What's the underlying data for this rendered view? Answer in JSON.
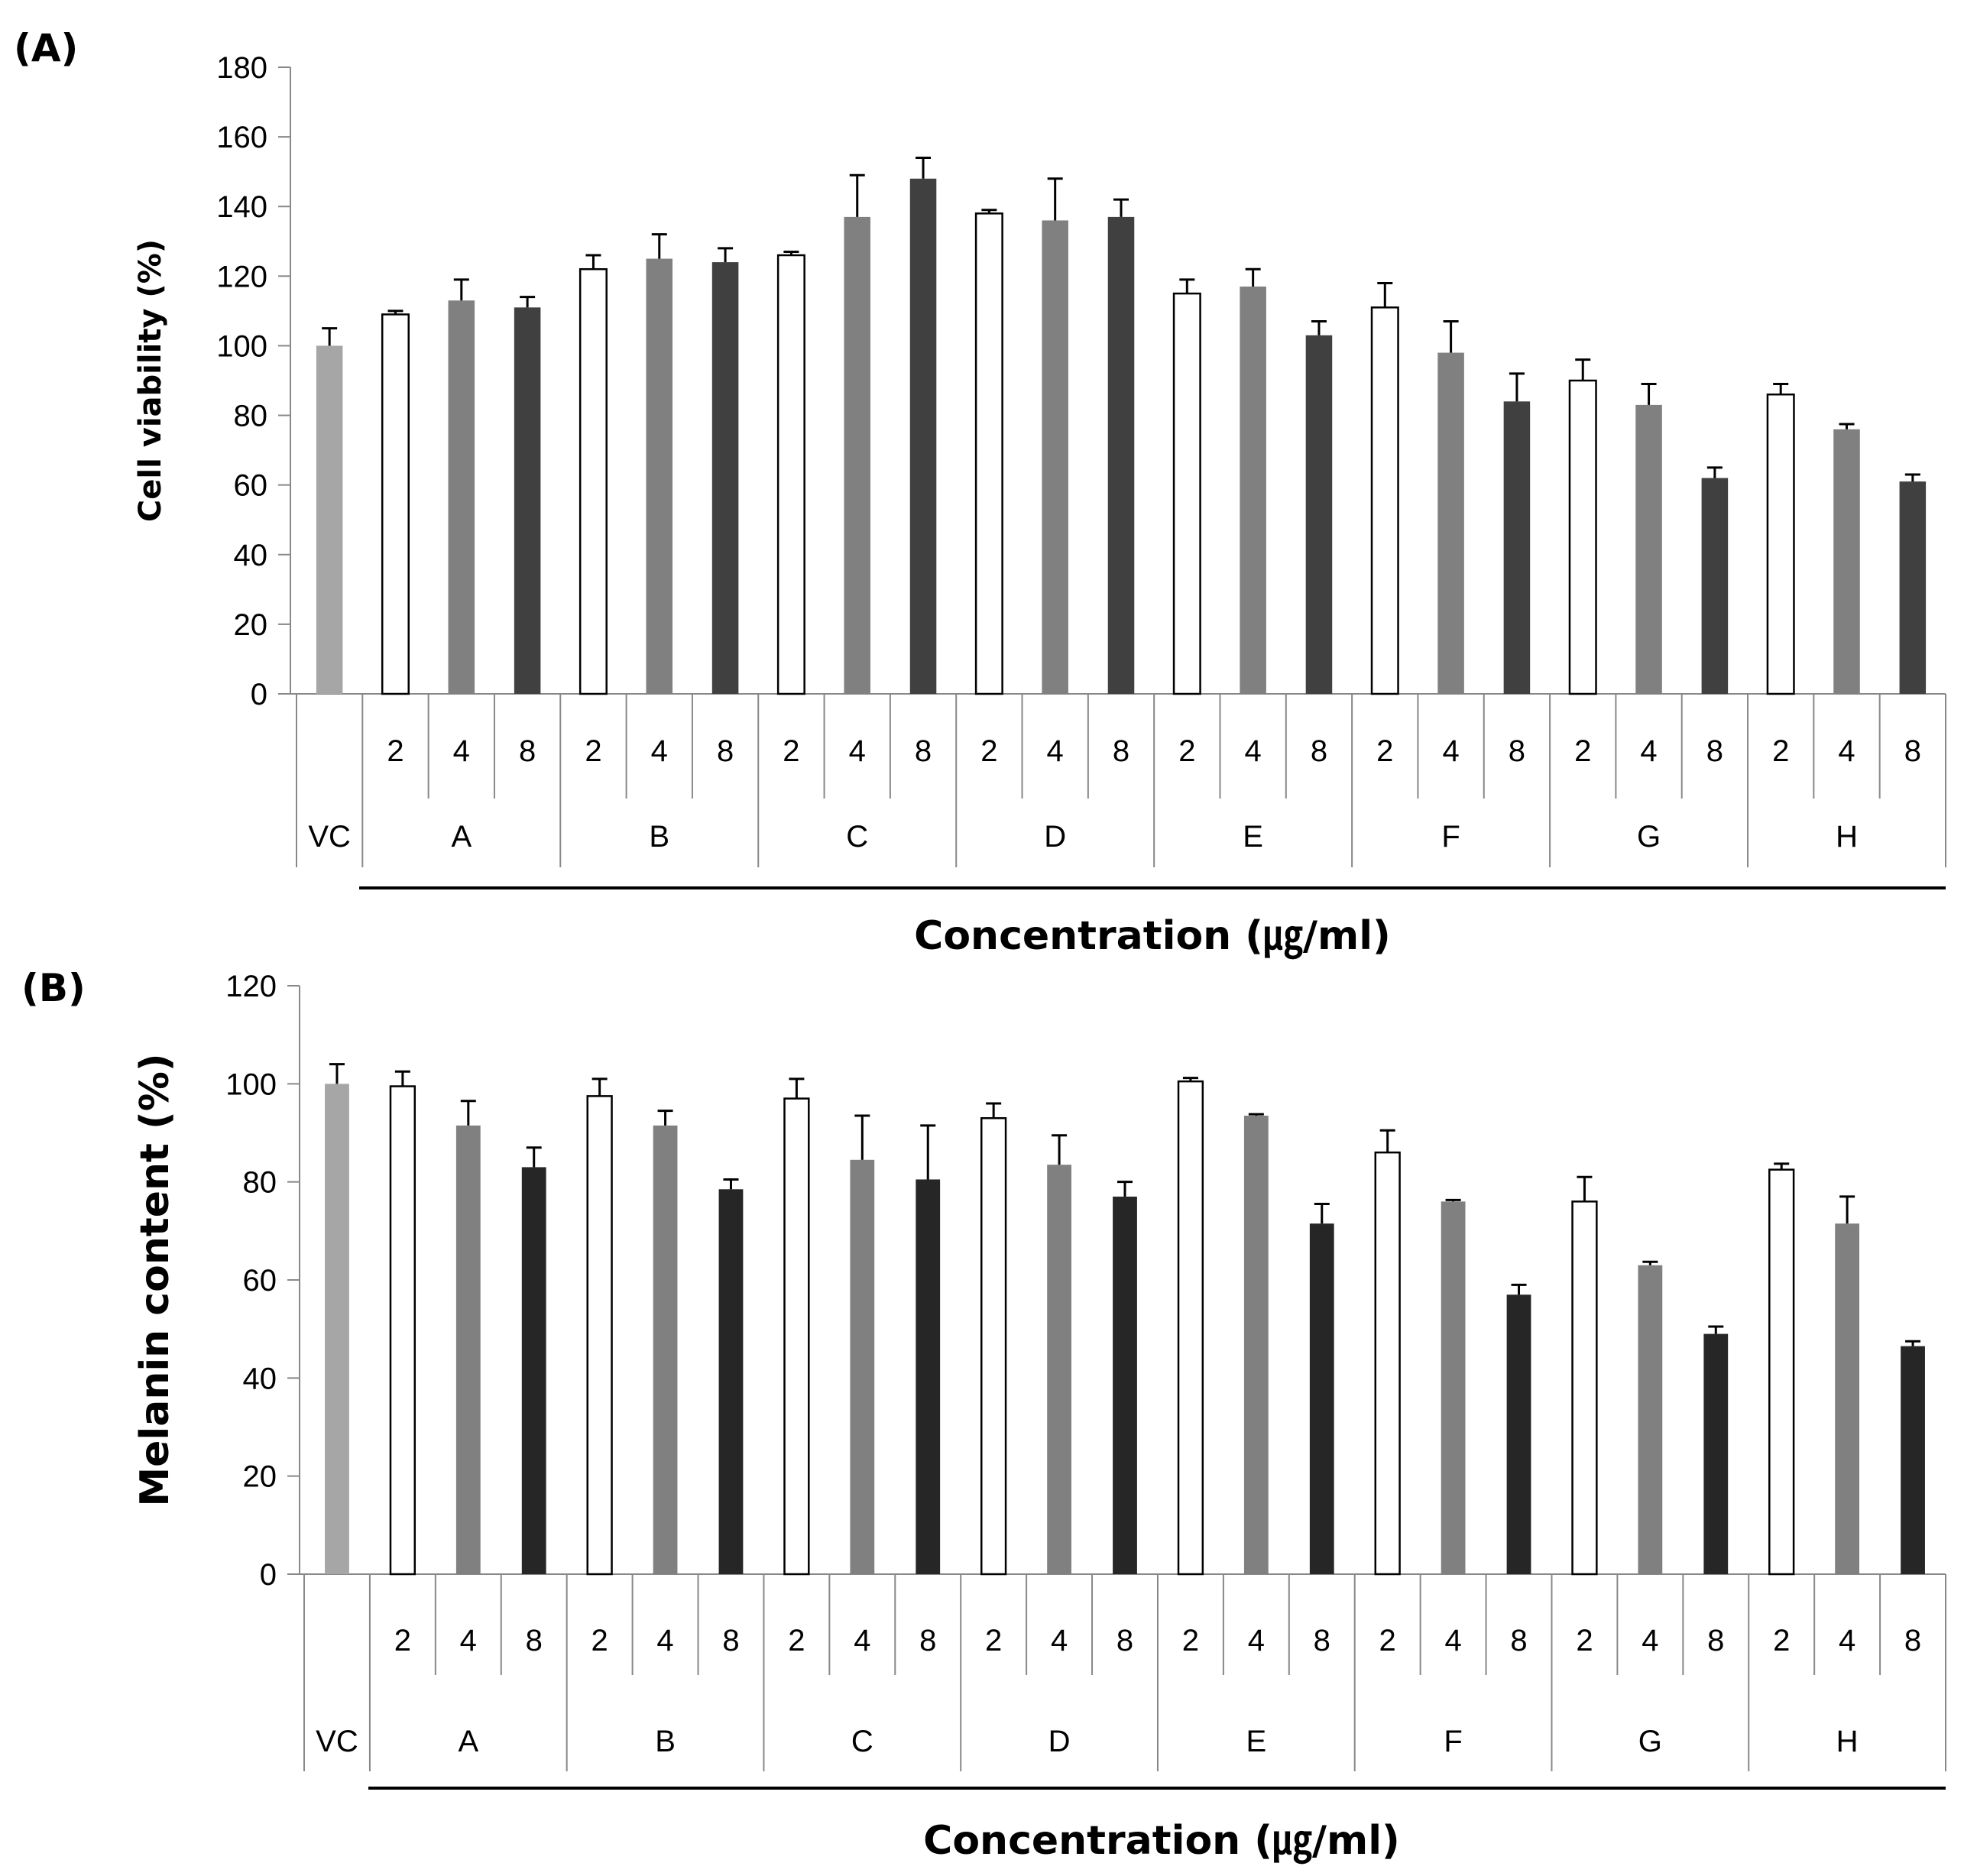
{
  "chart_data": [
    {
      "type": "bar",
      "panel_label": "(A)",
      "title": "",
      "ylabel": "Cell viability (%)",
      "xlabel": "Concentration (㎍/ml)",
      "ylim": [
        0,
        180
      ],
      "yticks": [
        "0",
        "20",
        "40",
        "60",
        "80",
        "100",
        "120",
        "140",
        "160",
        "180"
      ],
      "control": {
        "label": "VC",
        "value": 100,
        "error": 5,
        "color": "#a6a6a6"
      },
      "groups": [
        "A",
        "B",
        "C",
        "D",
        "E",
        "F",
        "G",
        "H"
      ],
      "doses": [
        "2",
        "4",
        "8"
      ],
      "dose_colors": [
        "#ffffff",
        "#808080",
        "#404040"
      ],
      "values": [
        [
          109,
          113,
          111
        ],
        [
          122,
          125,
          124
        ],
        [
          126,
          137,
          148
        ],
        [
          138,
          136,
          137
        ],
        [
          115,
          117,
          103
        ],
        [
          111,
          98,
          84
        ],
        [
          90,
          83,
          62
        ],
        [
          86,
          76,
          61
        ]
      ],
      "errors": [
        [
          1,
          6,
          3
        ],
        [
          4,
          7,
          4
        ],
        [
          1,
          12,
          6
        ],
        [
          1,
          12,
          5
        ],
        [
          4,
          5,
          4
        ],
        [
          7,
          9,
          8
        ],
        [
          6,
          6,
          3
        ],
        [
          3,
          1.5,
          2
        ]
      ]
    },
    {
      "type": "bar",
      "panel_label": "(B)",
      "title": "",
      "ylabel": "Melanin content (%)",
      "xlabel": "Concentration (㎍/ml)",
      "ylim": [
        0,
        120
      ],
      "yticks": [
        "0",
        "20",
        "40",
        "60",
        "80",
        "100",
        "120"
      ],
      "control": {
        "label": "VC",
        "value": 100,
        "error": 4,
        "color": "#a6a6a6"
      },
      "groups": [
        "A",
        "B",
        "C",
        "D",
        "E",
        "F",
        "G",
        "H"
      ],
      "doses": [
        "2",
        "4",
        "8"
      ],
      "dose_colors": [
        "#ffffff",
        "#808080",
        "#262626"
      ],
      "values": [
        [
          99.5,
          91.5,
          83
        ],
        [
          97.5,
          91.5,
          78.5
        ],
        [
          97,
          84.5,
          80.5
        ],
        [
          93,
          83.5,
          77
        ],
        [
          100.5,
          93.5,
          71.5
        ],
        [
          86,
          76,
          57
        ],
        [
          76,
          63,
          49
        ],
        [
          82.5,
          71.5,
          46.5
        ]
      ],
      "errors": [
        [
          3,
          5,
          4
        ],
        [
          3.5,
          3,
          2
        ],
        [
          4,
          9,
          11
        ],
        [
          3,
          6,
          3
        ],
        [
          0.7,
          0.3,
          4
        ],
        [
          4.5,
          0.3,
          2
        ],
        [
          5,
          0.7,
          1.5
        ],
        [
          1.2,
          5.5,
          1
        ]
      ]
    }
  ]
}
